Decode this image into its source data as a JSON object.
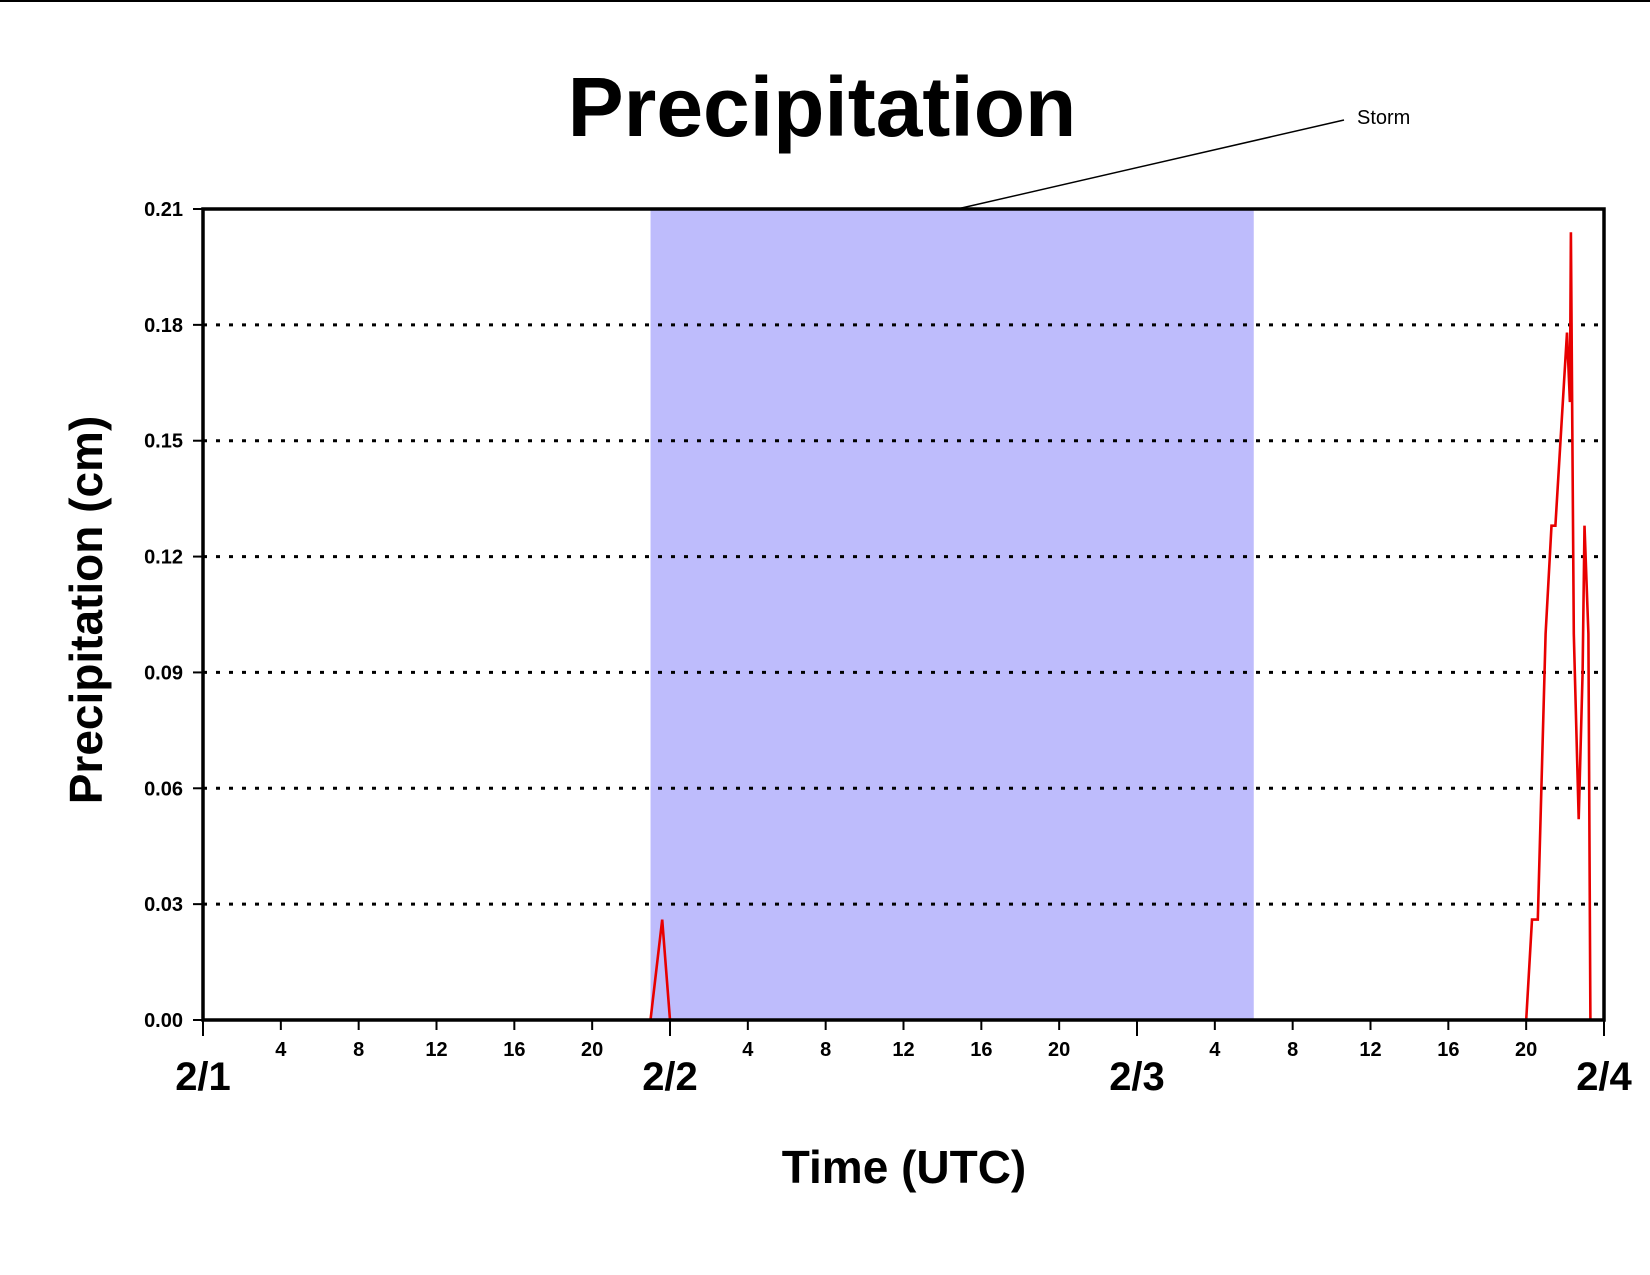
{
  "chart_data": {
    "type": "line",
    "title": "Precipitation",
    "xlabel": "Time (UTC)",
    "ylabel": "Precipitation (cm)",
    "ylim": [
      0,
      0.21
    ],
    "yticks": [
      "0.00",
      "0.03",
      "0.06",
      "0.09",
      "0.12",
      "0.15",
      "0.18",
      "0.21"
    ],
    "x_unit": "hours since 2/1 00 UTC",
    "xlim": [
      0,
      72
    ],
    "x_date_labels": [
      {
        "label": "2/1",
        "hour": 0
      },
      {
        "label": "2/2",
        "hour": 24
      },
      {
        "label": "2/3",
        "hour": 48
      },
      {
        "label": "2/4",
        "hour": 72
      }
    ],
    "x_hour_labels": [
      {
        "label": "4",
        "hour": 4
      },
      {
        "label": "8",
        "hour": 8
      },
      {
        "label": "12",
        "hour": 12
      },
      {
        "label": "16",
        "hour": 16
      },
      {
        "label": "20",
        "hour": 20
      },
      {
        "label": "4",
        "hour": 28
      },
      {
        "label": "8",
        "hour": 32
      },
      {
        "label": "12",
        "hour": 36
      },
      {
        "label": "16",
        "hour": 40
      },
      {
        "label": "20",
        "hour": 44
      },
      {
        "label": "4",
        "hour": 52
      },
      {
        "label": "8",
        "hour": 56
      },
      {
        "label": "12",
        "hour": 60
      },
      {
        "label": "16",
        "hour": 64
      },
      {
        "label": "20",
        "hour": 68
      }
    ],
    "grid": {
      "horizontal": true,
      "style": "dotted"
    },
    "shaded_region": {
      "label": "Storm",
      "x_start": 23,
      "x_end": 54,
      "color": "#bebcfc"
    },
    "series": [
      {
        "color": "#e80000",
        "points": [
          [
            0,
            0
          ],
          [
            23,
            0
          ],
          [
            23.6,
            0.026
          ],
          [
            24,
            0.0
          ],
          [
            68,
            0
          ],
          [
            68.3,
            0.026
          ],
          [
            68.6,
            0.026
          ],
          [
            69,
            0.1
          ],
          [
            69.3,
            0.128
          ],
          [
            69.5,
            0.128
          ],
          [
            70.1,
            0.178
          ],
          [
            70.25,
            0.16
          ],
          [
            70.3,
            0.204
          ],
          [
            70.45,
            0.1
          ],
          [
            70.7,
            0.052
          ],
          [
            70.9,
            0.09
          ],
          [
            71.0,
            0.128
          ],
          [
            71.2,
            0.1
          ],
          [
            71.3,
            0.0
          ],
          [
            72,
            0
          ]
        ]
      }
    ]
  }
}
